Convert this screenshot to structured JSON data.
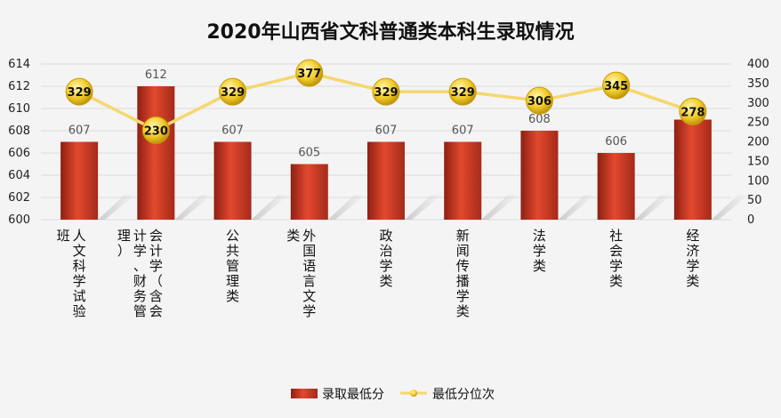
{
  "chart_data": {
    "type": "bar",
    "title": "2020年山西省文科普通类本科生录取情况",
    "categories": [
      [
        "人",
        "文",
        "科",
        "学",
        "试",
        "验",
        "班"
      ],
      [
        "会",
        "计",
        "学",
        "（",
        "含",
        "会",
        "计",
        "学",
        "、",
        "财",
        "务",
        "管",
        "理",
        "）"
      ],
      [
        "公",
        "共",
        "管",
        "理",
        "类"
      ],
      [
        "外",
        "国",
        "语",
        "言",
        "文",
        "学",
        "类"
      ],
      [
        "政",
        "治",
        "学",
        "类"
      ],
      [
        "新",
        "闻",
        "传",
        "播",
        "学",
        "类"
      ],
      [
        "法",
        "学",
        "类"
      ],
      [
        "社",
        "会",
        "学",
        "类"
      ],
      [
        "经",
        "济",
        "学",
        "类"
      ]
    ],
    "series": [
      {
        "name": "录取最低分",
        "type": "bar",
        "axis": "left",
        "color": "#c0392b",
        "values": [
          607,
          612,
          607,
          605,
          607,
          607,
          608,
          606,
          609
        ]
      },
      {
        "name": "最低分位次",
        "type": "line",
        "axis": "right",
        "color": "#f5d76e",
        "values": [
          329,
          230,
          329,
          377,
          329,
          329,
          306,
          345,
          278
        ]
      }
    ],
    "y_left": {
      "min": 600,
      "max": 614,
      "step": 2
    },
    "y_right": {
      "min": 0,
      "max": 400,
      "step": 50
    },
    "grid": true,
    "legend_position": "bottom"
  }
}
